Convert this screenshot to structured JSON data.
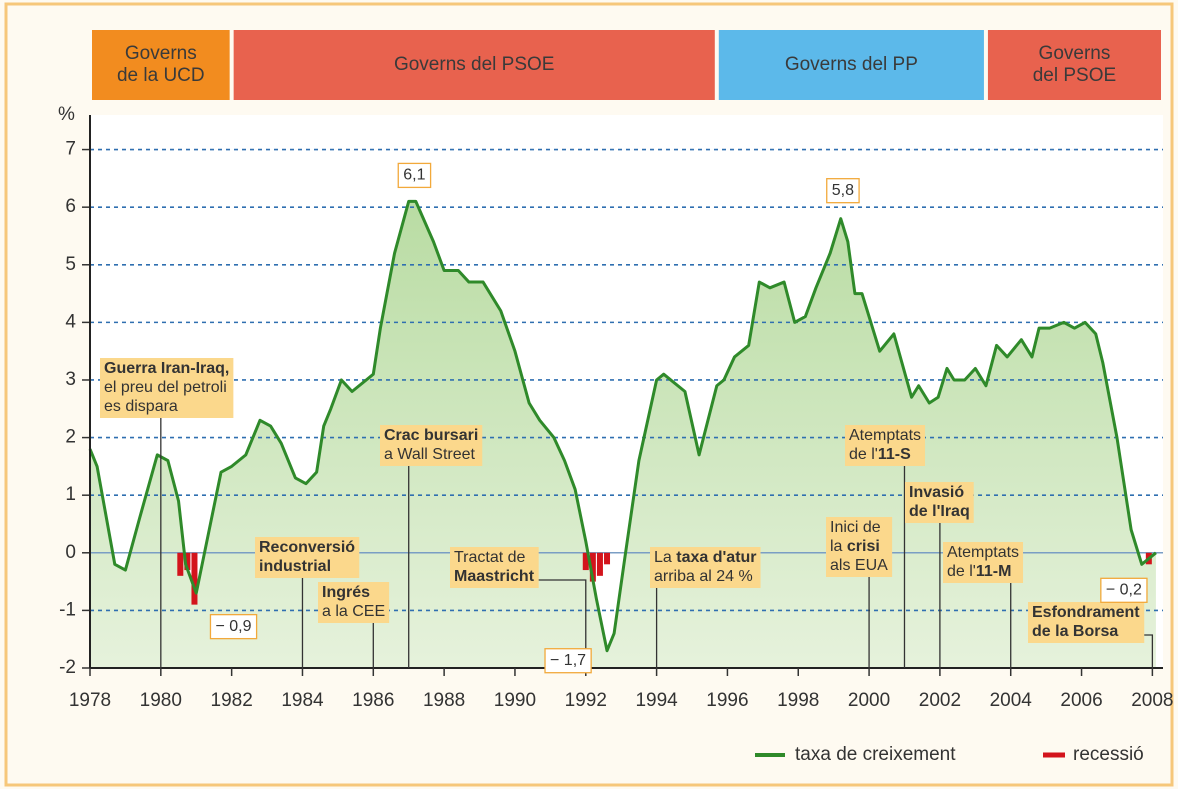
{
  "chart_data": {
    "type": "line",
    "y_label": "%",
    "xlim": [
      1978,
      2008.3
    ],
    "ylim": [
      -2,
      7.6
    ],
    "xticks": [
      1978,
      1980,
      1982,
      1984,
      1986,
      1988,
      1990,
      1992,
      1994,
      1996,
      1998,
      2000,
      2002,
      2004,
      2006,
      2008
    ],
    "yticks": [
      -2,
      -1,
      0,
      1,
      2,
      3,
      4,
      5,
      6,
      7
    ],
    "grid": true,
    "legend": "bottom-right",
    "governments": [
      {
        "lines": [
          "Governs",
          "de la UCD"
        ],
        "start": 1978,
        "end": 1982,
        "color": "#f28c1f"
      },
      {
        "lines": [
          "Governs del PSOE"
        ],
        "start": 1982,
        "end": 1995.7,
        "color": "#e8624e"
      },
      {
        "lines": [
          "Governs del PP"
        ],
        "start": 1995.7,
        "end": 2003.3,
        "color": "#5cb9ea"
      },
      {
        "lines": [
          "Governs",
          "del PSOE"
        ],
        "start": 2003.3,
        "end": 2008.3,
        "color": "#e8624e"
      }
    ],
    "series": [
      {
        "name": "taxa de creixement",
        "color": "#2f8a2a",
        "type": "line",
        "x": [
          1978.0,
          1978.2,
          1978.7,
          1979.0,
          1979.4,
          1979.9,
          1980.2,
          1980.5,
          1980.7,
          1981.0,
          1981.4,
          1981.7,
          1982.0,
          1982.4,
          1982.8,
          1983.1,
          1983.4,
          1983.8,
          1984.1,
          1984.4,
          1984.6,
          1984.8,
          1985.1,
          1985.4,
          1985.8,
          1986.0,
          1986.2,
          1986.6,
          1987.0,
          1987.2,
          1987.7,
          1988.0,
          1988.4,
          1988.7,
          1989.1,
          1989.6,
          1990.0,
          1990.4,
          1990.7,
          1991.1,
          1991.4,
          1991.7,
          1992.0,
          1992.3,
          1992.6,
          1992.8,
          1993.1,
          1993.5,
          1994.0,
          1994.2,
          1994.8,
          1995.2,
          1995.7,
          1995.9,
          1996.2,
          1996.6,
          1996.9,
          1997.2,
          1997.6,
          1997.9,
          1998.2,
          1998.5,
          1998.9,
          1999.2,
          1999.4,
          1999.6,
          1999.8,
          2000.3,
          2000.7,
          2001.2,
          2001.4,
          2001.7,
          2001.95,
          2002.2,
          2002.4,
          2002.7,
          2003.0,
          2003.3,
          2003.6,
          2003.9,
          2004.3,
          2004.6,
          2004.8,
          2005.1,
          2005.5,
          2005.8,
          2006.1,
          2006.4,
          2006.6,
          2007.0,
          2007.4,
          2007.7,
          2008.1
        ],
        "values": [
          1.8,
          1.5,
          -0.2,
          -0.3,
          0.6,
          1.7,
          1.6,
          0.9,
          -0.2,
          -0.7,
          0.5,
          1.4,
          1.5,
          1.7,
          2.3,
          2.2,
          1.9,
          1.3,
          1.2,
          1.4,
          2.2,
          2.5,
          3.0,
          2.8,
          3.0,
          3.1,
          3.9,
          5.2,
          6.1,
          6.1,
          5.4,
          4.9,
          4.9,
          4.7,
          4.7,
          4.2,
          3.5,
          2.6,
          2.3,
          2.0,
          1.6,
          1.1,
          0.2,
          -0.8,
          -1.7,
          -1.4,
          -0.1,
          1.6,
          3.0,
          3.1,
          2.8,
          1.7,
          2.9,
          3.0,
          3.4,
          3.6,
          4.7,
          4.6,
          4.7,
          4.0,
          4.1,
          4.6,
          5.2,
          5.8,
          5.4,
          4.5,
          4.5,
          3.5,
          3.8,
          2.7,
          2.9,
          2.6,
          2.7,
          3.2,
          3.0,
          3.0,
          3.2,
          2.9,
          3.6,
          3.4,
          3.7,
          3.4,
          3.9,
          3.9,
          4.0,
          3.9,
          4.0,
          3.8,
          3.3,
          2.0,
          0.4,
          -0.2,
          0.0
        ]
      },
      {
        "name": "recessió",
        "color": "#d3141c",
        "type": "bar",
        "x": [
          1980.55,
          1980.75,
          1980.95,
          1992.0,
          1992.2,
          1992.4,
          1992.6,
          2007.9
        ],
        "values": [
          -0.4,
          -0.3,
          -0.9,
          -0.3,
          -0.5,
          -0.4,
          -0.2,
          -0.2
        ]
      }
    ],
    "point_labels": [
      {
        "x": 1987.1,
        "y": 6.1,
        "label": "6,1"
      },
      {
        "x": 1999.2,
        "y": 5.8,
        "label": "5,8"
      },
      {
        "x": 1992.6,
        "y": -1.7,
        "label": "− 1,7"
      },
      {
        "x": 1980.95,
        "y": -0.9,
        "label": "− 0,9"
      },
      {
        "x": 2007.9,
        "y": -0.2,
        "label": "− 0,2"
      }
    ],
    "annotations": [
      {
        "x": 1980,
        "lines": [
          [
            {
              "t": "Guerra Iran-Iraq,",
              "b": true
            }
          ],
          [
            {
              "t": "el preu del petroli"
            }
          ],
          [
            {
              "t": "es dispara"
            }
          ]
        ]
      },
      {
        "x": 1984,
        "lines": [
          [
            {
              "t": "Reconversió",
              "b": true
            }
          ],
          [
            {
              "t": "industrial",
              "b": true
            }
          ]
        ]
      },
      {
        "x": 1986,
        "lines": [
          [
            {
              "t": "Ingrés",
              "b": true
            }
          ],
          [
            {
              "t": "a la CEE"
            }
          ]
        ]
      },
      {
        "x": 1987,
        "lines": [
          [
            {
              "t": "Crac bursari",
              "b": true
            }
          ],
          [
            {
              "t": "a Wall Street"
            }
          ]
        ]
      },
      {
        "x": 1992,
        "lines": [
          [
            {
              "t": "Tractat de"
            }
          ],
          [
            {
              "t": "Maastricht",
              "b": true
            }
          ]
        ]
      },
      {
        "x": 1994,
        "lines": [
          [
            {
              "t": "La "
            },
            {
              "t": "taxa d'atur",
              "b": true
            }
          ],
          [
            {
              "t": "arriba al 24 %"
            }
          ]
        ]
      },
      {
        "x": 2001,
        "lines": [
          [
            {
              "t": "Atemptats"
            }
          ],
          [
            {
              "t": "de l'"
            },
            {
              "t": "11-S",
              "b": true
            }
          ]
        ]
      },
      {
        "x": 2000,
        "lines": [
          [
            {
              "t": "Inici de"
            }
          ],
          [
            {
              "t": "la "
            },
            {
              "t": "crisi",
              "b": true
            }
          ],
          [
            {
              "t": "als EUA"
            }
          ]
        ]
      },
      {
        "x": 2002,
        "lines": [
          [
            {
              "t": "Invasió",
              "b": true
            }
          ],
          [
            {
              "t": "de l'Iraq",
              "b": true
            }
          ]
        ]
      },
      {
        "x": 2004,
        "lines": [
          [
            {
              "t": "Atemptats"
            }
          ],
          [
            {
              "t": "de l'"
            },
            {
              "t": "11-M",
              "b": true
            }
          ]
        ]
      },
      {
        "x": 2008,
        "lines": [
          [
            {
              "t": "Esfondrament",
              "b": true
            }
          ],
          [
            {
              "t": "de la Borsa",
              "b": true
            }
          ]
        ]
      }
    ]
  }
}
